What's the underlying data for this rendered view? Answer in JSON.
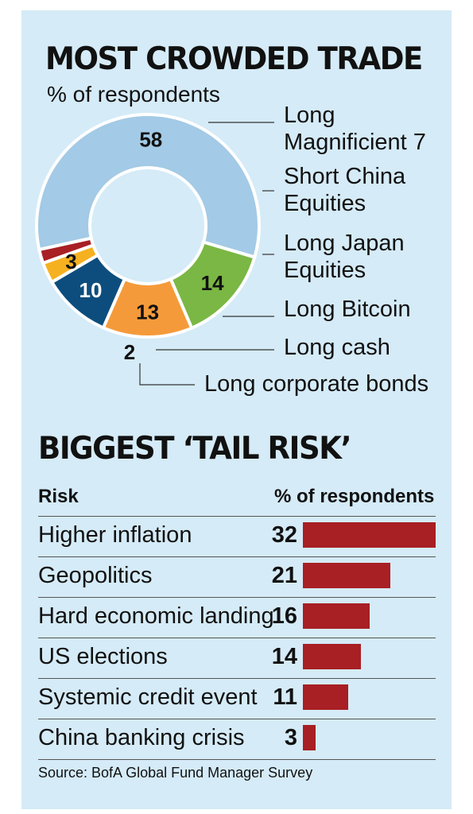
{
  "chart_data": [
    {
      "type": "pie",
      "title": "MOST CROWDED TRADE",
      "subtitle": "% of respondents",
      "categories": [
        "Long Magnificient 7",
        "Short China Equities",
        "Long Japan Equities",
        "Long Bitcoin",
        "Long cash",
        "Long corporate bonds"
      ],
      "label_lines": [
        [
          "Long",
          "Magnificient 7"
        ],
        [
          "Short China",
          "Equities"
        ],
        [
          "Long Japan",
          "Equities"
        ],
        [
          "Long Bitcoin"
        ],
        [
          "Long cash"
        ],
        [
          "Long corporate bonds"
        ]
      ],
      "values": [
        58,
        14,
        13,
        10,
        3,
        2
      ],
      "colors": [
        "#a3cae6",
        "#7ab744",
        "#f59a3a",
        "#0d4d7d",
        "#f5b120",
        "#a81f24"
      ],
      "donut": true
    },
    {
      "type": "bar",
      "title": "BIGGEST ‘TAIL RISK’",
      "column_headers": [
        "Risk",
        "% of respondents"
      ],
      "categories": [
        "Higher inflation",
        "Geopolitics",
        "Hard economic landing",
        "US elections",
        "Systemic credit event",
        "China banking crisis"
      ],
      "values": [
        32,
        21,
        16,
        14,
        11,
        3
      ],
      "bar_color": "#a81f24",
      "orientation": "horizontal"
    }
  ],
  "source": "Source: BofA Global Fund Manager Survey"
}
